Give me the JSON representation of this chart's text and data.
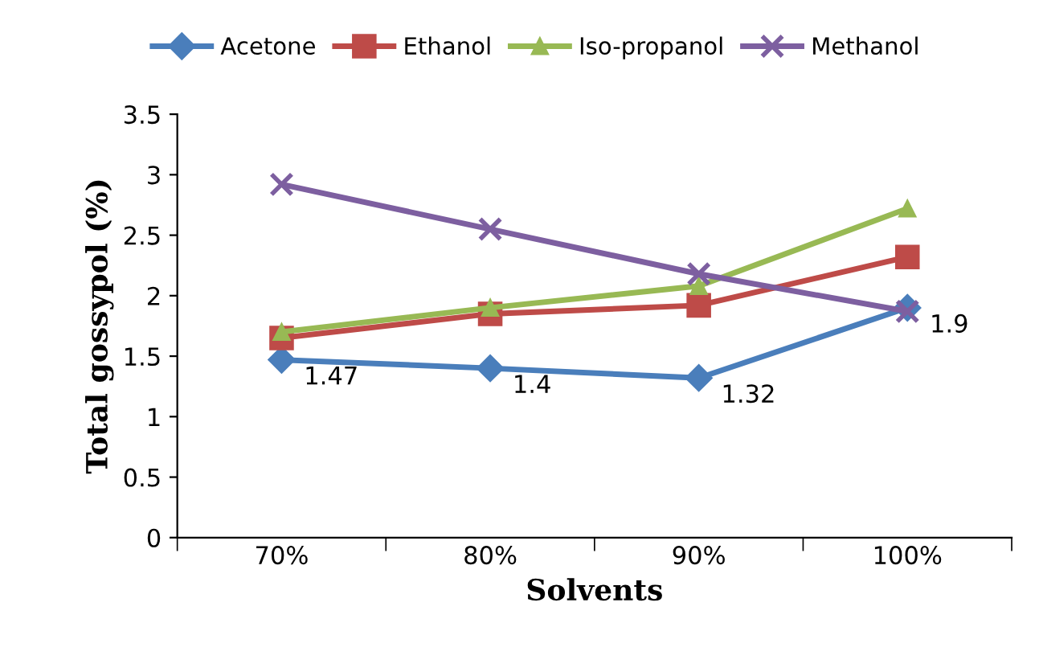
{
  "chart_data": {
    "type": "line",
    "xlabel": "Solvents",
    "ylabel": "Total gossypol (%)",
    "categories": [
      "70%",
      "80%",
      "90%",
      "100%"
    ],
    "series": [
      {
        "name": "Acetone",
        "color": "#4a7ebb",
        "marker": "diamond",
        "values": [
          1.47,
          1.4,
          1.32,
          1.9
        ],
        "value_labels": [
          "1.47",
          "1.4",
          "1.32",
          "1.9"
        ]
      },
      {
        "name": "Ethanol",
        "color": "#be4b48",
        "marker": "square",
        "values": [
          1.65,
          1.85,
          1.92,
          2.32
        ]
      },
      {
        "name": "Iso-propanol",
        "color": "#98b954",
        "marker": "triangle",
        "values": [
          1.7,
          1.9,
          2.08,
          2.72
        ]
      },
      {
        "name": "Methanol",
        "color": "#7d5fa0",
        "marker": "cross",
        "values": [
          2.92,
          2.55,
          2.18,
          1.87
        ]
      }
    ],
    "ylim": [
      0,
      3.5
    ],
    "yticks": [
      0,
      0.5,
      1,
      1.5,
      2,
      2.5,
      3,
      3.5
    ],
    "grid": false,
    "legend": "top"
  }
}
